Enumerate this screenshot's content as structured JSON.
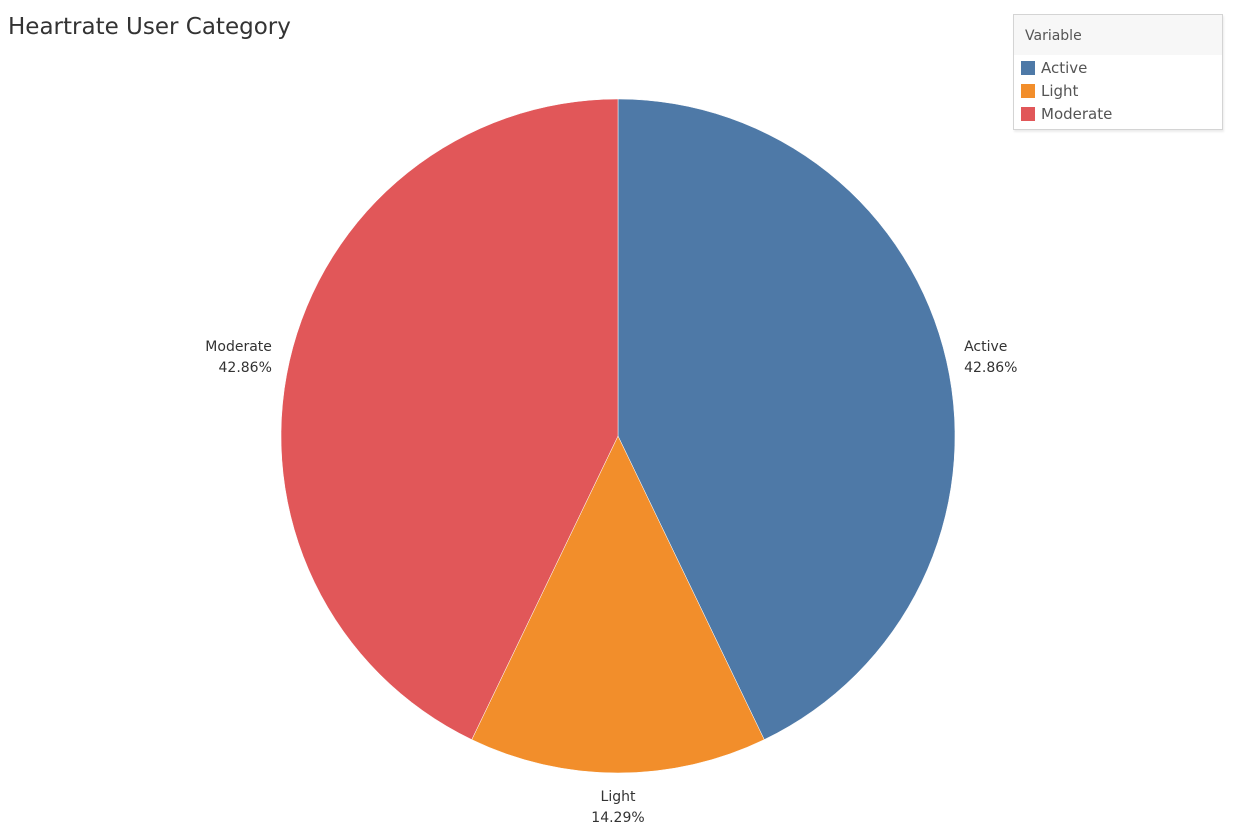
{
  "chart_data": {
    "type": "pie",
    "title": "Heartrate User Category",
    "legend": {
      "title": "Variable",
      "placement": "top-right"
    },
    "slices": [
      {
        "label": "Active",
        "value": 42.86,
        "value_label": "42.86%",
        "color": "#4e79a7"
      },
      {
        "label": "Light",
        "value": 14.29,
        "value_label": "14.29%",
        "color": "#f28e2b"
      },
      {
        "label": "Moderate",
        "value": 42.86,
        "value_label": "42.86%",
        "color": "#e15759"
      }
    ]
  }
}
